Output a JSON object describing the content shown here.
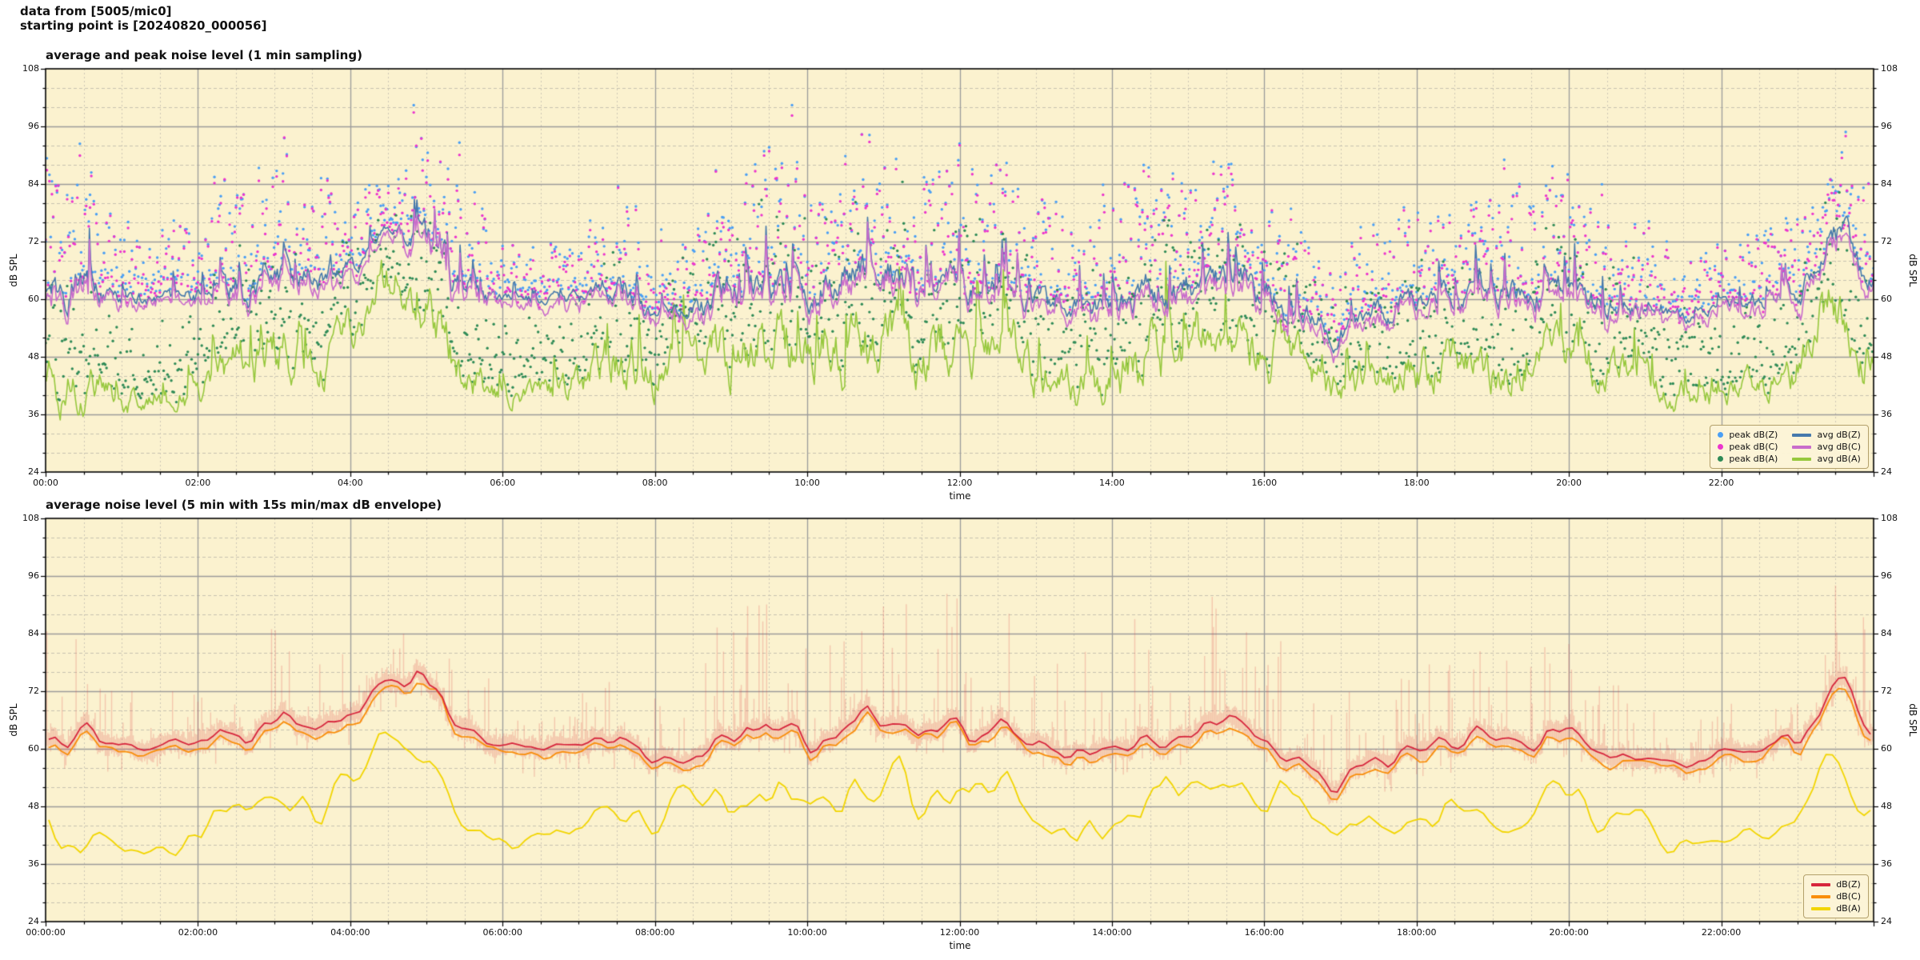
{
  "header": {
    "line1": "data from [5005/mic0]",
    "line2": "starting point is [20240820_000056]"
  },
  "axis": {
    "ylabel": "dB SPL",
    "xlabel": "time",
    "ylim": [
      24,
      108
    ],
    "yticks": [
      24,
      36,
      48,
      60,
      72,
      84,
      96,
      108
    ],
    "y_minor_step_db": 4,
    "x_major_step_hours": 2,
    "x_minor_step_hours": 0.5
  },
  "style": {
    "plot_bg": "#fbf2cf",
    "grid_major": "#9b9b9b",
    "grid_minor_h": "#c8c3b0",
    "grid_minor_v": "#ccc7b6",
    "spine": "#000000",
    "envelope": "rgba(222,70,70,0.25)"
  },
  "charts": [
    {
      "title": "average and peak noise level (1 min sampling)",
      "xticks": [
        "00:00",
        "02:00",
        "04:00",
        "06:00",
        "08:00",
        "10:00",
        "12:00",
        "14:00",
        "16:00",
        "18:00",
        "20:00",
        "22:00"
      ],
      "legend": {
        "peaks": [
          {
            "label": "peak dB(Z)",
            "color": "#4a9ff5"
          },
          {
            "label": "peak dB(C)",
            "color": "#ec35cd"
          },
          {
            "label": "peak dB(A)",
            "color": "#2f8b57"
          }
        ],
        "avgs": [
          {
            "label": "avg dB(Z)",
            "color": "#4679ac"
          },
          {
            "label": "avg dB(C)",
            "color": "#c96ccb"
          },
          {
            "label": "avg dB(A)",
            "color": "#97c83e"
          }
        ]
      }
    },
    {
      "title": "average noise level (5 min with 15s min/max dB envelope)",
      "xticks": [
        "00:00:00",
        "02:00:00",
        "04:00:00",
        "06:00:00",
        "08:00:00",
        "10:00:00",
        "12:00:00",
        "14:00:00",
        "16:00:00",
        "18:00:00",
        "20:00:00",
        "22:00:00"
      ],
      "legend": {
        "lines": [
          {
            "label": "dB(Z)",
            "color": "#d7263d"
          },
          {
            "label": "dB(C)",
            "color": "#f98e0a"
          },
          {
            "label": "dB(A)",
            "color": "#f2d500"
          }
        ]
      }
    }
  ],
  "chart_data": [
    {
      "type": "line",
      "title": "average and peak noise level (1 min sampling)",
      "xlabel": "time",
      "ylabel": "dB SPL",
      "xlim_hours": [
        0,
        24
      ],
      "ylim": [
        24,
        108
      ],
      "sampling": "1 min",
      "anchor_hours": [
        0,
        0.5,
        1,
        1.5,
        2,
        2.5,
        3,
        3.5,
        4,
        4.5,
        5,
        5.5,
        6,
        6.5,
        7,
        7.5,
        8,
        8.5,
        9,
        9.5,
        10,
        10.5,
        11,
        11.5,
        12,
        12.5,
        13,
        13.5,
        14,
        14.5,
        15,
        15.5,
        16,
        16.5,
        17,
        17.5,
        18,
        18.5,
        19,
        19.5,
        20,
        20.5,
        21,
        21.5,
        22,
        22.5,
        23,
        23.5,
        24
      ],
      "series": [
        {
          "name": "avg dB(Z)",
          "kind": "line",
          "color": "#4679ac",
          "anchor_values": [
            62,
            63,
            60,
            60,
            60,
            62,
            66,
            64,
            68,
            75,
            71,
            61,
            60,
            60,
            60,
            63,
            57,
            58,
            62,
            64,
            63,
            65,
            68,
            63,
            63,
            64,
            60,
            58,
            57,
            61,
            63,
            64,
            62,
            56,
            53,
            57,
            60,
            61,
            60,
            62,
            63,
            59,
            58,
            57,
            58,
            60,
            62,
            74,
            66
          ],
          "jitter_db": [
            5,
            5,
            2,
            2,
            2.5,
            4,
            4.5,
            4,
            2.5,
            1.5,
            4.5,
            4,
            1.5,
            1.5,
            2,
            3.5,
            2,
            3,
            4.5,
            5,
            5,
            5,
            4.5,
            4.5,
            4.5,
            4,
            3.5,
            3.5,
            4.5,
            5,
            4.5,
            4.5,
            4.5,
            3.5,
            3,
            3.5,
            3.5,
            3.5,
            4,
            4.5,
            4,
            3.5,
            3,
            2,
            2,
            2.5,
            3,
            4,
            4
          ]
        },
        {
          "name": "avg dB(C)",
          "kind": "line",
          "color": "#c96ccb",
          "offset_from": "avg dB(Z)",
          "offset_db": -1.5
        },
        {
          "name": "avg dB(A)",
          "kind": "line",
          "color": "#97c83e",
          "anchor_values": [
            42,
            44,
            40,
            40,
            42,
            46,
            50,
            45,
            52,
            63,
            57,
            44,
            40,
            40,
            42,
            49,
            44,
            46,
            50,
            52,
            50,
            52,
            54,
            48,
            50,
            52,
            46,
            44,
            42,
            48,
            50,
            52,
            50,
            46,
            42,
            44,
            46,
            47,
            45,
            47,
            50,
            44,
            42,
            40,
            40,
            42,
            46,
            58,
            48
          ],
          "jitter_db": [
            5,
            5,
            3,
            3,
            4,
            6,
            6,
            5,
            4,
            3,
            6,
            5,
            3,
            3,
            4,
            6,
            5,
            5,
            7,
            7,
            7,
            7,
            7,
            6,
            6,
            6,
            5,
            5,
            6,
            7,
            7,
            6,
            6,
            5,
            4,
            4,
            5,
            5,
            5,
            5,
            6,
            5,
            4,
            3,
            3,
            3,
            5,
            6,
            5
          ]
        },
        {
          "name": "peak dB(Z)",
          "kind": "scatter",
          "color": "#4a9ff5",
          "above": "avg dB(Z)",
          "spread_db": [
            1,
            26
          ]
        },
        {
          "name": "peak dB(C)",
          "kind": "scatter",
          "color": "#ec35cd",
          "above": "avg dB(C)",
          "spread_db": [
            1,
            26
          ]
        },
        {
          "name": "peak dB(A)",
          "kind": "scatter",
          "color": "#2f8b57",
          "above": "avg dB(A)",
          "spread_db": [
            2,
            20
          ]
        }
      ]
    },
    {
      "type": "area",
      "title": "average noise level (5 min with 15s min/max dB envelope)",
      "xlabel": "time",
      "ylabel": "dB SPL",
      "xlim_hours": [
        0,
        24
      ],
      "ylim": [
        24,
        108
      ],
      "sampling": "5 min",
      "envelope": "15s min/max",
      "series": [
        {
          "name": "dB(Z)",
          "color": "#d7263d",
          "derived": "5-min mean of avg dB(Z) anchors above"
        },
        {
          "name": "dB(C)",
          "color": "#f98e0a",
          "derived": "5-min mean of avg dB(C) anchors above"
        },
        {
          "name": "dB(A)",
          "color": "#f2d500",
          "derived": "5-min mean of avg dB(A) anchors above"
        },
        {
          "name": "min/max envelope",
          "color": "rgba(222,70,70,0.25)",
          "around": "dB(Z)",
          "max_spike_db": 24
        }
      ]
    }
  ]
}
